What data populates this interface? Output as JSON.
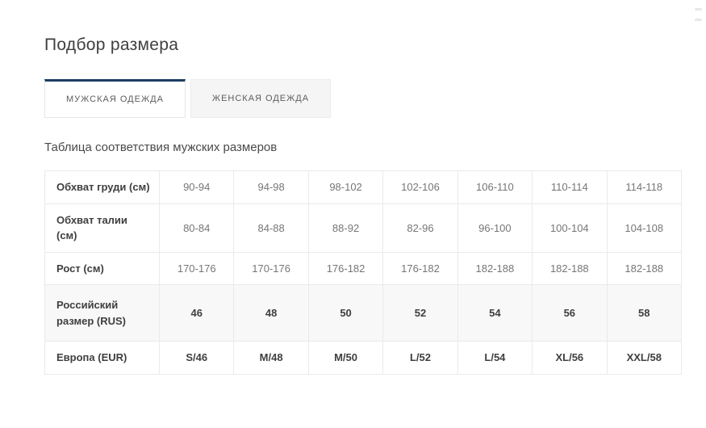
{
  "page": {
    "title": "Подбор размера",
    "subtitle": "Таблица соответствия мужских размеров"
  },
  "tabs": [
    {
      "label": "МУЖСКАЯ ОДЕЖДА",
      "active": true
    },
    {
      "label": "ЖЕНСКАЯ ОДЕЖДА",
      "active": false
    }
  ],
  "size_table": {
    "rows": [
      {
        "label": "Обхват груди (см)",
        "values": [
          "90-94",
          "94-98",
          "98-102",
          "102-106",
          "106-110",
          "110-114",
          "114-118"
        ],
        "bold_values": false,
        "shaded": false
      },
      {
        "label": "Обхват талии (см)",
        "values": [
          "80-84",
          "84-88",
          "88-92",
          "82-96",
          "96-100",
          "100-104",
          "104-108"
        ],
        "bold_values": false,
        "shaded": false
      },
      {
        "label": "Рост (см)",
        "values": [
          "170-176",
          "170-176",
          "176-182",
          "176-182",
          "182-188",
          "182-188",
          "182-188"
        ],
        "bold_values": false,
        "shaded": false
      },
      {
        "label": "Российский размер (RUS)",
        "values": [
          "46",
          "48",
          "50",
          "52",
          "54",
          "56",
          "58"
        ],
        "bold_values": true,
        "shaded": true
      },
      {
        "label": "Европа (EUR)",
        "values": [
          "S/46",
          "M/48",
          "M/50",
          "L/52",
          "L/54",
          "XL/56",
          "XXL/58"
        ],
        "bold_values": true,
        "shaded": false
      }
    ]
  },
  "icons": {
    "scroll_indicator": "double-dash"
  },
  "colors": {
    "accent_tab_border": "#1c3e63",
    "table_border": "#eaeaea",
    "shaded_row_bg": "#f8f8f8",
    "inactive_tab_bg": "#f5f5f5",
    "text_dark": "#3f3f3f",
    "text_muted": "#767676"
  }
}
